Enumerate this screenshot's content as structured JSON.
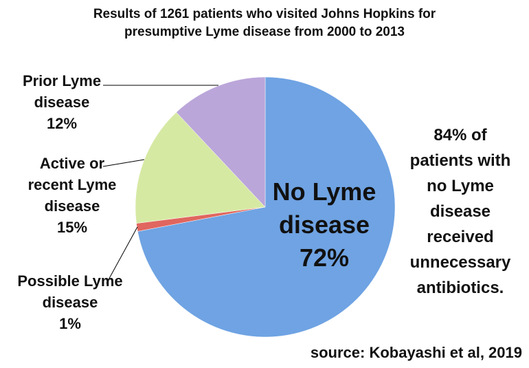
{
  "chart_data": {
    "type": "pie",
    "title": "Results of 1261 patients who visited Johns Hopkins for presumptive Lyme disease from 2000 to 2013",
    "categories": [
      "No Lyme disease",
      "Possible Lyme disease",
      "Active or recent Lyme disease",
      "Prior Lyme disease"
    ],
    "values": [
      72,
      1,
      15,
      12
    ],
    "value_labels": [
      "72%",
      "1%",
      "15%",
      "12%"
    ],
    "colors": [
      "#6fa3e3",
      "#e0665f",
      "#d6e9a3",
      "#bba6da"
    ],
    "annotation": "84% of patients with no Lyme disease received unnecessary antibiotics.",
    "source": "source: Kobayashi et al, 2019"
  }
}
